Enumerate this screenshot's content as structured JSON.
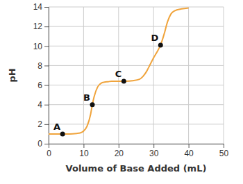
{
  "chart_data": {
    "type": "line",
    "x_label": "Volume of Base Added (mL)",
    "y_label": "pH",
    "x": [
      0,
      2,
      4,
      6,
      8,
      9,
      10,
      11,
      12,
      12.5,
      13,
      14,
      15,
      16,
      17,
      18,
      20,
      22,
      24,
      26,
      27,
      28,
      29,
      30,
      31,
      32,
      33,
      34,
      35,
      36,
      38,
      40
    ],
    "values": [
      1,
      1,
      1,
      1,
      1.05,
      1.1,
      1.3,
      1.8,
      3,
      4,
      4.8,
      5.8,
      6.2,
      6.3,
      6.35,
      6.4,
      6.4,
      6.4,
      6.45,
      6.6,
      6.9,
      7.4,
      8.1,
      8.8,
      9.4,
      10.1,
      11.2,
      12.5,
      13.3,
      13.6,
      13.8,
      13.9
    ],
    "color": "#f0a43c",
    "xlim": [
      0,
      50
    ],
    "xticks": [
      0,
      10,
      20,
      30,
      40,
      50
    ],
    "ylim": [
      0,
      14
    ],
    "yticks": [
      0,
      2,
      4,
      6,
      8,
      10,
      12,
      14
    ],
    "grid": true,
    "annotations": [
      {
        "label": "A",
        "x": 4,
        "y": 1
      },
      {
        "label": "B",
        "x": 12.5,
        "y": 4
      },
      {
        "label": "C",
        "x": 21.5,
        "y": 6.4
      },
      {
        "label": "D",
        "x": 32,
        "y": 10.1
      }
    ]
  }
}
